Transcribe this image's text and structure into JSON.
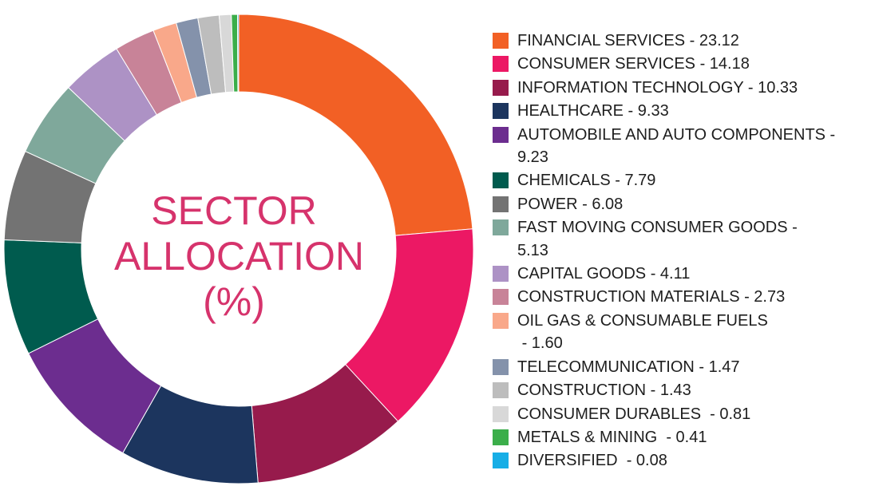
{
  "chart_data": {
    "type": "pie",
    "title_lines": [
      "SECTOR",
      "ALLOCATION",
      "(%)"
    ],
    "legend_placement": "right",
    "slices": [
      {
        "label": "FINANCIAL SERVICES - 23.12",
        "value": 23.12,
        "color": "#f26025"
      },
      {
        "label": "CONSUMER SERVICES - 14.18",
        "value": 14.18,
        "color": "#ec1864"
      },
      {
        "label": "INFORMATION TECHNOLOGY - 10.33",
        "value": 10.33,
        "color": "#971b4c"
      },
      {
        "label": "HEALTHCARE - 9.33",
        "value": 9.33,
        "color": "#1c355e"
      },
      {
        "label": "AUTOMOBILE AND AUTO COMPONENTS -\n9.23",
        "value": 9.23,
        "color": "#6c2d8f"
      },
      {
        "label": "CHEMICALS - 7.79",
        "value": 7.79,
        "color": "#005b4e"
      },
      {
        "label": "POWER - 6.08",
        "value": 6.08,
        "color": "#737373"
      },
      {
        "label": "FAST MOVING CONSUMER GOODS -\n5.13",
        "value": 5.13,
        "color": "#7fa89b"
      },
      {
        "label": "CAPITAL GOODS - 4.11",
        "value": 4.11,
        "color": "#ad92c5"
      },
      {
        "label": "CONSTRUCTION MATERIALS - 2.73",
        "value": 2.73,
        "color": "#c88398"
      },
      {
        "label": "OIL GAS & CONSUMABLE FUELS\n - 1.60",
        "value": 1.6,
        "color": "#f9a88a"
      },
      {
        "label": "TELECOMMUNICATION - 1.47",
        "value": 1.47,
        "color": "#8492ab"
      },
      {
        "label": "CONSTRUCTION - 1.43",
        "value": 1.43,
        "color": "#bdbdbd"
      },
      {
        "label": "CONSUMER DURABLES  - 0.81",
        "value": 0.81,
        "color": "#d8d8d8"
      },
      {
        "label": "METALS & MINING  - 0.41",
        "value": 0.41,
        "color": "#3bae4a"
      },
      {
        "label": "DIVERSIFIED  - 0.08",
        "value": 0.08,
        "color": "#17aee6"
      }
    ]
  }
}
